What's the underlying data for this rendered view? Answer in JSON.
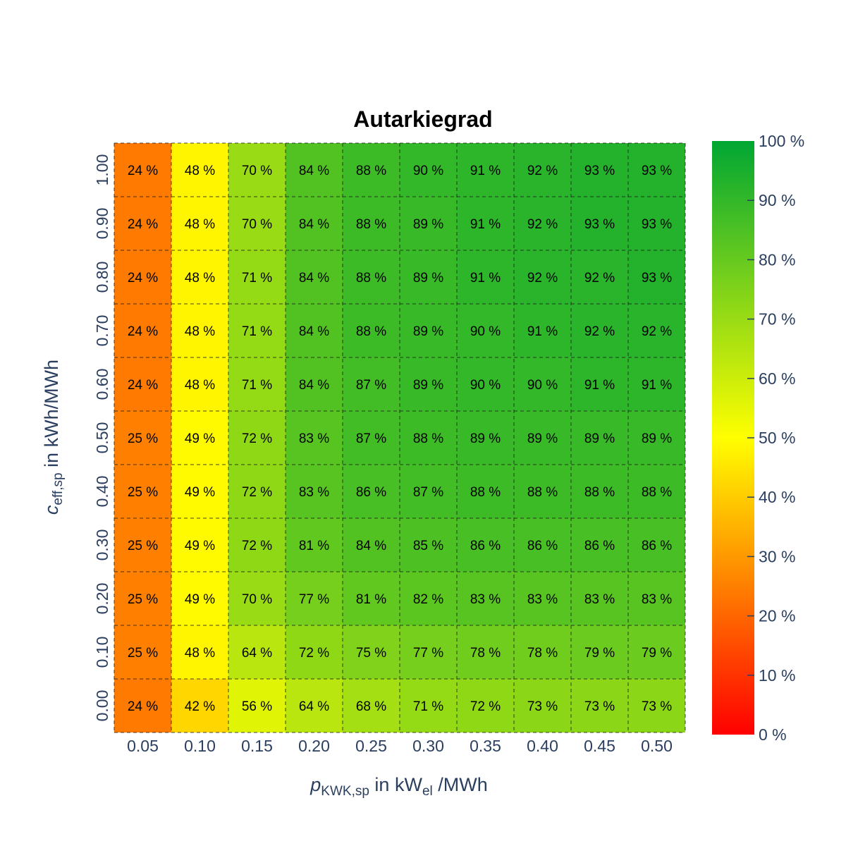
{
  "chart_data": {
    "type": "heatmap",
    "title": "Autarkiegrad",
    "xlabel": {
      "main": "p",
      "sub": "KWK,sp",
      "mid": " in kW",
      "sub2": "el",
      "end": " /MWh"
    },
    "ylabel": {
      "main": "c",
      "sub": "eff,sp",
      "end": " in kWh/MWh"
    },
    "x": [
      "0.05",
      "0.10",
      "0.15",
      "0.20",
      "0.25",
      "0.30",
      "0.35",
      "0.40",
      "0.45",
      "0.50"
    ],
    "y": [
      "1.00",
      "0.90",
      "0.80",
      "0.70",
      "0.60",
      "0.50",
      "0.40",
      "0.30",
      "0.20",
      "0.10",
      "0.00"
    ],
    "values": [
      [
        24,
        48,
        70,
        84,
        88,
        90,
        91,
        92,
        93,
        93
      ],
      [
        24,
        48,
        70,
        84,
        88,
        89,
        91,
        92,
        93,
        93
      ],
      [
        24,
        48,
        71,
        84,
        88,
        89,
        91,
        92,
        92,
        93
      ],
      [
        24,
        48,
        71,
        84,
        88,
        89,
        90,
        91,
        92,
        92
      ],
      [
        24,
        48,
        71,
        84,
        87,
        89,
        90,
        90,
        91,
        91
      ],
      [
        25,
        49,
        72,
        83,
        87,
        88,
        89,
        89,
        89,
        89
      ],
      [
        25,
        49,
        72,
        83,
        86,
        87,
        88,
        88,
        88,
        88
      ],
      [
        25,
        49,
        72,
        81,
        84,
        85,
        86,
        86,
        86,
        86
      ],
      [
        25,
        49,
        70,
        77,
        81,
        82,
        83,
        83,
        83,
        83
      ],
      [
        25,
        48,
        64,
        72,
        75,
        77,
        78,
        78,
        79,
        79
      ],
      [
        24,
        42,
        56,
        64,
        68,
        71,
        72,
        73,
        73,
        73
      ]
    ],
    "value_suffix": " %",
    "colorscale_range": [
      0,
      100
    ],
    "colorscale": [
      {
        "stop": 0,
        "color": "#ff0000"
      },
      {
        "stop": 0.5,
        "color": "#ffff00"
      },
      {
        "stop": 1,
        "color": "#00a633"
      }
    ],
    "colorbar_ticks": [
      "0 %",
      "10 %",
      "20 %",
      "30 %",
      "40 %",
      "50 %",
      "60 %",
      "70 %",
      "80 %",
      "90 %",
      "100 %"
    ],
    "grid": "dashed",
    "legend": "colorbar-right"
  }
}
